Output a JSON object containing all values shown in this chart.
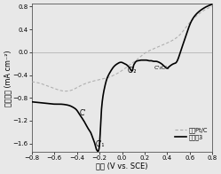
{
  "title": "",
  "xlabel": "电势 (V vs. SCE)",
  "ylabel": "电流密度 (mA cm⁻²)",
  "xlim": [
    -0.8,
    0.8
  ],
  "ylim": [
    -1.75,
    0.85
  ],
  "yticks": [
    -1.6,
    -1.2,
    -0.8,
    -0.4,
    0.0,
    0.4,
    0.8
  ],
  "xticks": [
    -0.8,
    -0.6,
    -0.4,
    -0.2,
    0.0,
    0.2,
    0.4,
    0.6,
    0.8
  ],
  "hline_y": 0.0,
  "hline_color": "#bbbbbb",
  "legend_labels": [
    "商业Pt/C",
    "实验例3"
  ],
  "line1_color": "#aaaaaa",
  "line2_color": "#000000",
  "background_color": "#e8e8e8",
  "ptc_x": [
    -0.8,
    -0.72,
    -0.65,
    -0.58,
    -0.52,
    -0.48,
    -0.44,
    -0.4,
    -0.35,
    -0.28,
    -0.2,
    -0.12,
    -0.05,
    0.0,
    0.05,
    0.1,
    0.15,
    0.2,
    0.28,
    0.35,
    0.42,
    0.48,
    0.52,
    0.56,
    0.6,
    0.65,
    0.7,
    0.75,
    0.8
  ],
  "ptc_y": [
    -0.52,
    -0.55,
    -0.6,
    -0.65,
    -0.68,
    -0.68,
    -0.66,
    -0.62,
    -0.57,
    -0.52,
    -0.48,
    -0.44,
    -0.38,
    -0.32,
    -0.25,
    -0.18,
    -0.1,
    -0.02,
    0.06,
    0.12,
    0.18,
    0.25,
    0.32,
    0.42,
    0.52,
    0.62,
    0.7,
    0.76,
    0.8
  ],
  "s3_x": [
    -0.8,
    -0.75,
    -0.7,
    -0.65,
    -0.6,
    -0.55,
    -0.5,
    -0.46,
    -0.43,
    -0.4,
    -0.38,
    -0.36,
    -0.34,
    -0.32,
    -0.3,
    -0.28,
    -0.26,
    -0.245,
    -0.235,
    -0.228,
    -0.222,
    -0.218,
    -0.214,
    -0.21,
    -0.205,
    -0.2,
    -0.196,
    -0.192,
    -0.188,
    -0.18,
    -0.17,
    -0.155,
    -0.14,
    -0.12,
    -0.1,
    -0.08,
    -0.055,
    -0.04,
    -0.02,
    0.0,
    0.02,
    0.04,
    0.06,
    0.075,
    0.085,
    0.095,
    0.1,
    0.11,
    0.12,
    0.14,
    0.16,
    0.18,
    0.2,
    0.22,
    0.24,
    0.26,
    0.28,
    0.3,
    0.32,
    0.34,
    0.36,
    0.38,
    0.4,
    0.42,
    0.44,
    0.46,
    0.48,
    0.5,
    0.52,
    0.56,
    0.6,
    0.65,
    0.7,
    0.75,
    0.8
  ],
  "s3_y": [
    -0.87,
    -0.88,
    -0.89,
    -0.9,
    -0.91,
    -0.91,
    -0.92,
    -0.94,
    -0.97,
    -1.02,
    -1.08,
    -1.14,
    -1.2,
    -1.27,
    -1.34,
    -1.4,
    -1.5,
    -1.58,
    -1.65,
    -1.7,
    -1.72,
    -1.73,
    -1.74,
    -1.73,
    -1.7,
    -1.62,
    -1.5,
    -1.35,
    -1.18,
    -0.95,
    -0.78,
    -0.62,
    -0.5,
    -0.4,
    -0.33,
    -0.27,
    -0.22,
    -0.2,
    -0.18,
    -0.18,
    -0.2,
    -0.22,
    -0.26,
    -0.3,
    -0.33,
    -0.3,
    -0.25,
    -0.2,
    -0.17,
    -0.15,
    -0.14,
    -0.14,
    -0.14,
    -0.14,
    -0.15,
    -0.15,
    -0.16,
    -0.16,
    -0.17,
    -0.19,
    -0.22,
    -0.26,
    -0.28,
    -0.25,
    -0.22,
    -0.2,
    -0.18,
    -0.1,
    0.02,
    0.25,
    0.48,
    0.65,
    0.74,
    0.8,
    0.84
  ]
}
